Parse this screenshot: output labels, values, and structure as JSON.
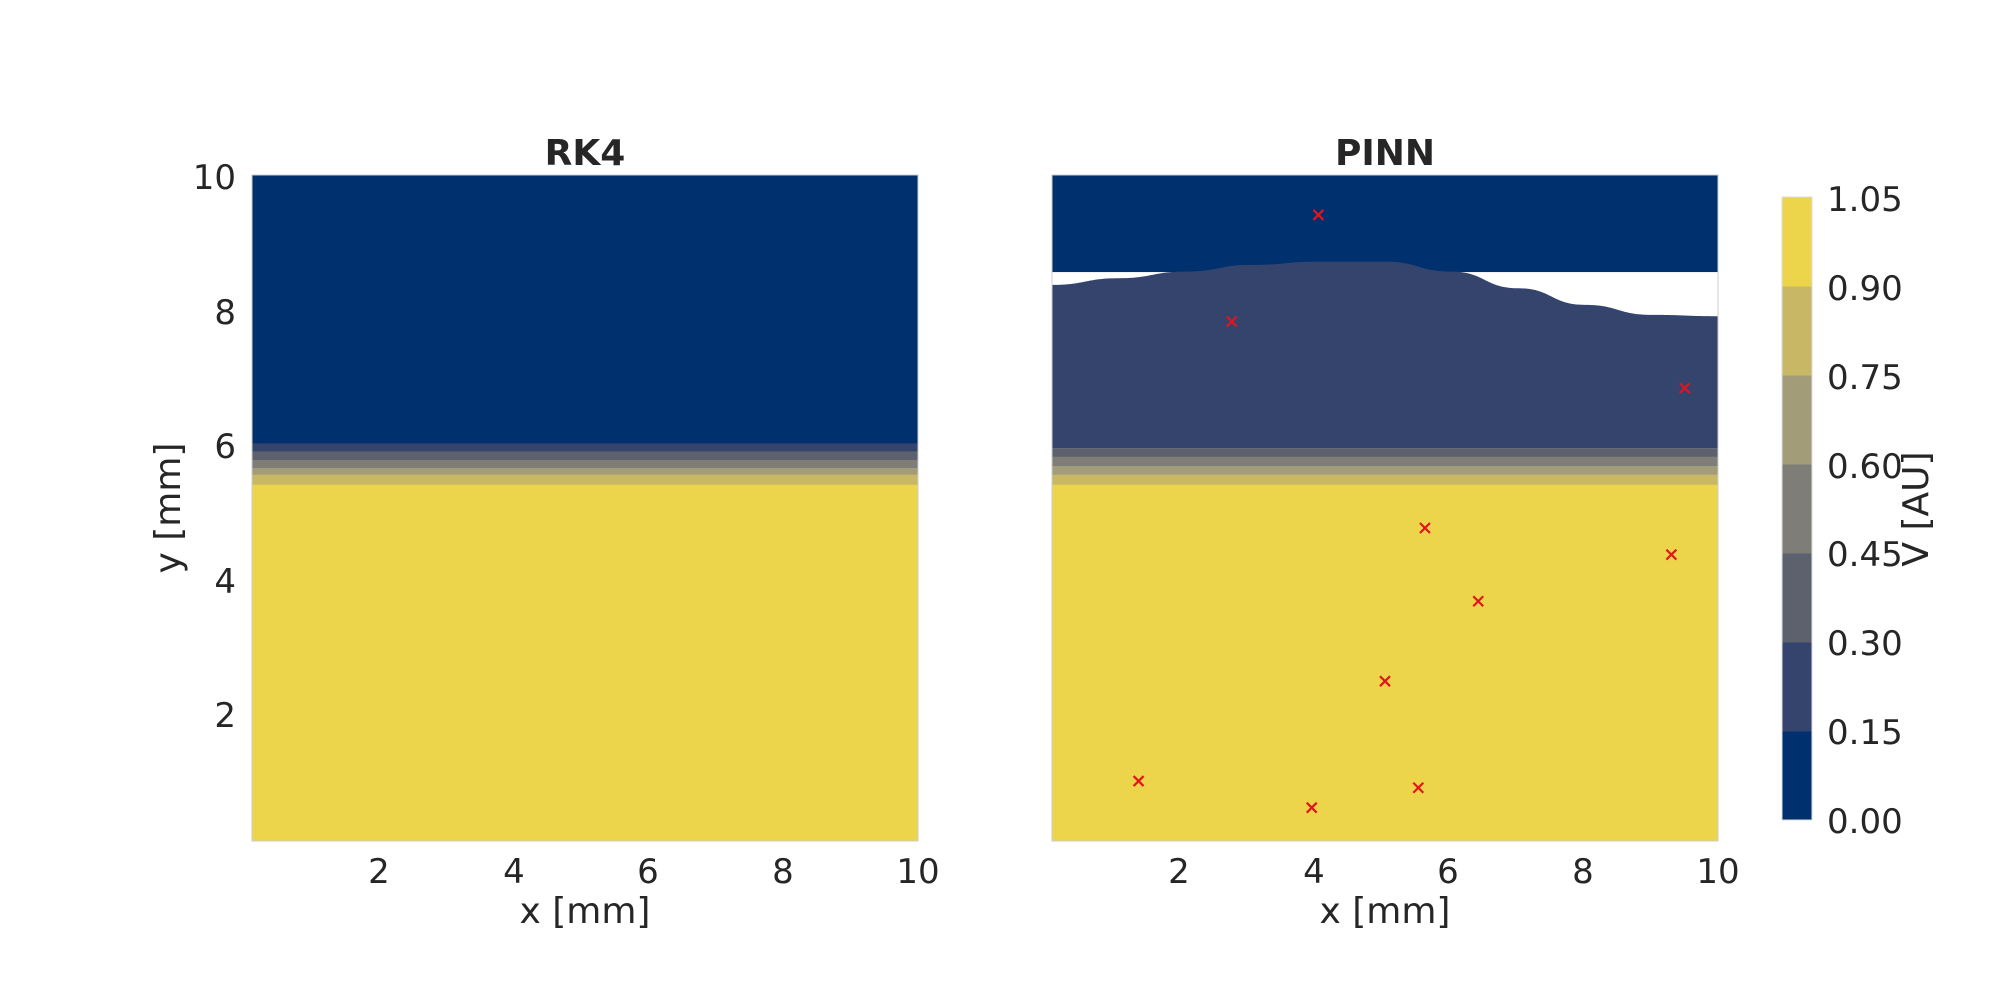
{
  "chart_data": [
    {
      "type": "heatmap",
      "title": "RK4",
      "xlabel": "x [mm]",
      "ylabel": "y [mm]",
      "xlim": [
        0,
        10
      ],
      "ylim": [
        0,
        10
      ],
      "x_ticks": [
        "2",
        "4",
        "6",
        "8",
        "10"
      ],
      "y_ticks": [
        "2",
        "4",
        "6",
        "8",
        "10"
      ],
      "grid": false,
      "bands": [
        {
          "from": 0,
          "to": 5.35,
          "level": 0.975
        },
        {
          "from": 5.35,
          "to": 5.5,
          "level": 0.825
        },
        {
          "from": 5.5,
          "to": 5.6,
          "level": 0.675
        },
        {
          "from": 5.6,
          "to": 5.72,
          "level": 0.525
        },
        {
          "from": 5.72,
          "to": 5.85,
          "level": 0.375
        },
        {
          "from": 5.85,
          "to": 5.97,
          "level": 0.225
        },
        {
          "from": 5.97,
          "to": 10,
          "level": 0.075
        }
      ]
    },
    {
      "type": "heatmap",
      "title": "PINN",
      "xlabel": "x [mm]",
      "ylabel": "",
      "xlim": [
        0,
        10
      ],
      "ylim": [
        0,
        10
      ],
      "x_ticks": [
        "2",
        "4",
        "6",
        "8",
        "10"
      ],
      "grid": false,
      "bands": [
        {
          "from": 0,
          "to": 5.35,
          "level": 0.975
        },
        {
          "from": 5.35,
          "to": 5.5,
          "level": 0.825
        },
        {
          "from": 5.5,
          "to": 5.63,
          "level": 0.675
        },
        {
          "from": 5.63,
          "to": 5.77,
          "level": 0.525
        },
        {
          "from": 5.77,
          "to": 5.9,
          "level": 0.375
        },
        {
          "from": 5.9,
          "to": 8.55,
          "level": 0.225,
          "upper_curve": [
            [
              0,
              8.35
            ],
            [
              1,
              8.45
            ],
            [
              2,
              8.55
            ],
            [
              3,
              8.65
            ],
            [
              4,
              8.7
            ],
            [
              5,
              8.7
            ],
            [
              6,
              8.55
            ],
            [
              7,
              8.3
            ],
            [
              8,
              8.05
            ],
            [
              9,
              7.9
            ],
            [
              10,
              7.88
            ]
          ]
        },
        {
          "from": 8.55,
          "to": 10,
          "level": 0.075
        }
      ],
      "markers": {
        "symbol": "x",
        "color": "#e4141c",
        "points": [
          [
            4.0,
            9.4
          ],
          [
            2.7,
            7.8
          ],
          [
            9.5,
            6.8
          ],
          [
            5.6,
            4.7
          ],
          [
            9.3,
            4.3
          ],
          [
            6.4,
            3.6
          ],
          [
            5.0,
            2.4
          ],
          [
            1.3,
            0.9
          ],
          [
            5.5,
            0.8
          ],
          [
            3.9,
            0.5
          ]
        ]
      }
    }
  ],
  "colorbar": {
    "label": "V [AU]",
    "ticks": [
      "0.00",
      "0.15",
      "0.30",
      "0.45",
      "0.60",
      "0.75",
      "0.90",
      "1.05"
    ],
    "levels": [
      {
        "from": 0.0,
        "to": 0.15,
        "color": "#00306e"
      },
      {
        "from": 0.15,
        "to": 0.3,
        "color": "#34446d"
      },
      {
        "from": 0.3,
        "to": 0.45,
        "color": "#5d616d"
      },
      {
        "from": 0.45,
        "to": 0.6,
        "color": "#7e7d77"
      },
      {
        "from": 0.6,
        "to": 0.75,
        "color": "#a29d78"
      },
      {
        "from": 0.75,
        "to": 0.9,
        "color": "#c8b866"
      },
      {
        "from": 0.9,
        "to": 1.05,
        "color": "#ecd54a"
      }
    ]
  }
}
